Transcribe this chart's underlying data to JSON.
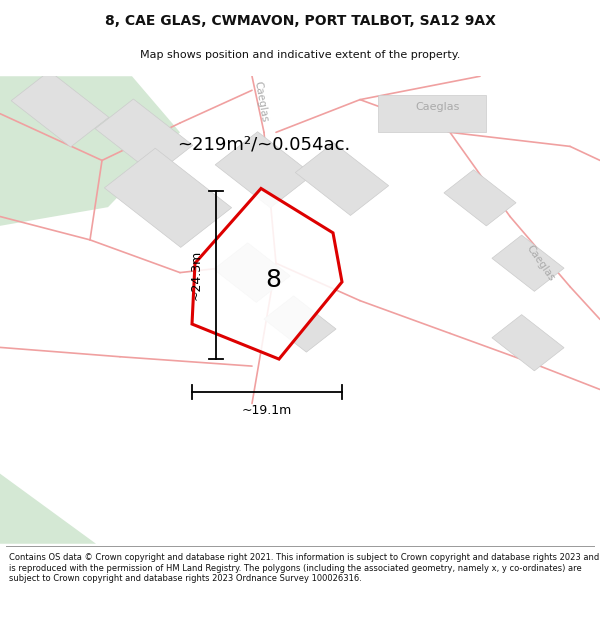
{
  "title": "8, CAE GLAS, CWMAVON, PORT TALBOT, SA12 9AX",
  "subtitle": "Map shows position and indicative extent of the property.",
  "area_text": "~219m²/~0.054ac.",
  "dim_h": "~24.3m",
  "dim_w": "~19.1m",
  "plot_label": "8",
  "copyright_text": "Contains OS data © Crown copyright and database right 2021. This information is subject to Crown copyright and database rights 2023 and is reproduced with the permission of HM Land Registry. The polygons (including the associated geometry, namely x, y co-ordinates) are subject to Crown copyright and database rights 2023 Ordnance Survey 100026316.",
  "map_bg": "#f8f8f6",
  "road_color": "#f0a0a0",
  "road_lw": 1.2,
  "building_color": "#e0e0e0",
  "building_edge": "#cccccc",
  "plot_edge_color": "#dd0000",
  "plot_fill_color": "#ffffff",
  "green_color": "#d4e8d4",
  "street_label_color": "#aaaaaa",
  "title_color": "#111111",
  "copyright_color": "#111111"
}
